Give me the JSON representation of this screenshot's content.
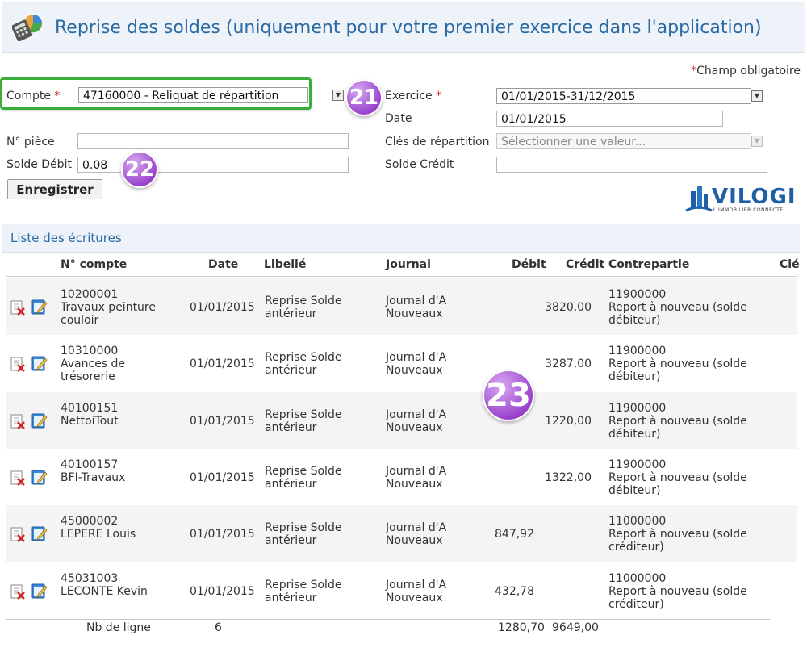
{
  "header": {
    "title": "Reprise des soldes (uniquement pour votre premier exercice dans l'application)"
  },
  "required_note": {
    "star": "*",
    "label": "Champ obligatoire"
  },
  "form": {
    "compte_label": "Compte",
    "compte_value": "47160000 - Reliquat de répartition",
    "exercice_label": "Exercice",
    "exercice_value": "01/01/2015-31/12/2015",
    "date_label": "Date",
    "date_value": "01/01/2015",
    "piece_label": "N° pièce",
    "piece_value": "",
    "cles_label": "Clés de répartition",
    "cles_placeholder": "Sélectionner une valeur...",
    "debit_label": "Solde Débit",
    "debit_value": "0.08",
    "credit_label": "Solde Crédit",
    "credit_value": "",
    "save_button": "Enregistrer",
    "required_star": "*"
  },
  "badges": {
    "b21": "21",
    "b22": "22",
    "b23": "23"
  },
  "brand": {
    "name": "VILOGI",
    "tagline": "L'IMMOBILIER CONNECTÉ",
    "color": "#1f5fa6"
  },
  "list": {
    "title": "Liste des écritures",
    "columns": {
      "compte": "N° compte",
      "date": "Date",
      "libelle": "Libellé",
      "journal": "Journal",
      "debit": "Débit",
      "credit": "Crédit",
      "contrepartie": "Contrepartie",
      "cles": "Clé"
    },
    "rows": [
      {
        "compte": "10200001",
        "compte_name": "Travaux peinture",
        "compte_name2": "couloir",
        "date": "01/01/2015",
        "libelle1": "Reprise Solde",
        "libelle2": "antérieur",
        "journal1": "Journal d'A",
        "journal2": "Nouveaux",
        "debit": "",
        "credit": "3820,00",
        "cp_num": "11900000",
        "cp1": "Report à nouveau (solde",
        "cp2": "débiteur)"
      },
      {
        "compte": "10310000",
        "compte_name": "Avances de",
        "compte_name2": "trésorerie",
        "date": "01/01/2015",
        "libelle1": "Reprise Solde",
        "libelle2": "antérieur",
        "journal1": "Journal d'A",
        "journal2": "Nouveaux",
        "debit": "",
        "credit": "3287,00",
        "cp_num": "11900000",
        "cp1": "Report à nouveau (solde",
        "cp2": "débiteur)"
      },
      {
        "compte": "40100151",
        "compte_name": "NettoiTout",
        "compte_name2": "",
        "date": "01/01/2015",
        "libelle1": "Reprise Solde",
        "libelle2": "antérieur",
        "journal1": "Journal d'A",
        "journal2": "Nouveaux",
        "debit": "",
        "credit": "1220,00",
        "cp_num": "11900000",
        "cp1": "Report à nouveau (solde",
        "cp2": "débiteur)"
      },
      {
        "compte": "40100157",
        "compte_name": "BFI-Travaux",
        "compte_name2": "",
        "date": "01/01/2015",
        "libelle1": "Reprise Solde",
        "libelle2": "antérieur",
        "journal1": "Journal d'A",
        "journal2": "Nouveaux",
        "debit": "",
        "credit": "1322,00",
        "cp_num": "11900000",
        "cp1": "Report à nouveau (solde",
        "cp2": "débiteur)"
      },
      {
        "compte": "45000002",
        "compte_name": "LEPERE Louis",
        "compte_name2": "",
        "date": "01/01/2015",
        "libelle1": "Reprise Solde",
        "libelle2": "antérieur",
        "journal1": "Journal d'A",
        "journal2": "Nouveaux",
        "debit": "847,92",
        "credit": "",
        "cp_num": "11000000",
        "cp1": "Report à nouveau (solde",
        "cp2": "créditeur)"
      },
      {
        "compte": "45031003",
        "compte_name": "LECONTE Kevin",
        "compte_name2": "",
        "date": "01/01/2015",
        "libelle1": "Reprise Solde",
        "libelle2": "antérieur",
        "journal1": "Journal d'A",
        "journal2": "Nouveaux",
        "debit": "432,78",
        "credit": "",
        "cp_num": "11000000",
        "cp1": "Report à nouveau (solde",
        "cp2": "créditeur)"
      }
    ],
    "summary": {
      "label": "Nb de ligne",
      "count": "6",
      "total_debit": "1280,70",
      "total_credit": "9649,00"
    }
  }
}
